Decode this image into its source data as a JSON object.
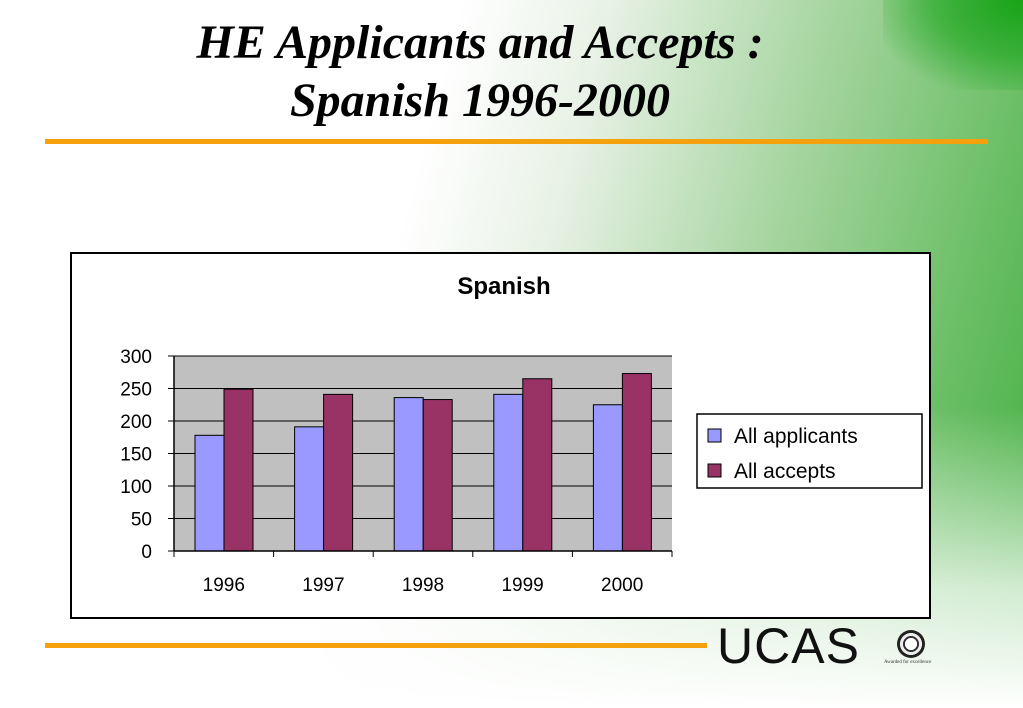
{
  "slide": {
    "title_line1": "HE Applicants and Accepts :",
    "title_line2": "Spanish 1996-2000"
  },
  "branding": {
    "logo_text": "UCAS",
    "seal_caption": "Awarded for excellence"
  },
  "colors": {
    "accent_rule": "#f5a10d",
    "series_applicants": "#9999ff",
    "series_accepts": "#993366",
    "plot_bg": "#c0c0c0"
  },
  "chart_data": {
    "type": "bar",
    "title": "Spanish",
    "xlabel": "",
    "ylabel": "",
    "categories": [
      "1996",
      "1997",
      "1998",
      "1999",
      "2000"
    ],
    "series": [
      {
        "name": "All applicants",
        "values": [
          178,
          191,
          236,
          241,
          225
        ]
      },
      {
        "name": "All accepts",
        "values": [
          249,
          241,
          233,
          265,
          273
        ]
      }
    ],
    "ylim": [
      0,
      300
    ],
    "yticks": [
      0,
      50,
      100,
      150,
      200,
      250,
      300
    ],
    "grid": true,
    "legend": "right"
  }
}
